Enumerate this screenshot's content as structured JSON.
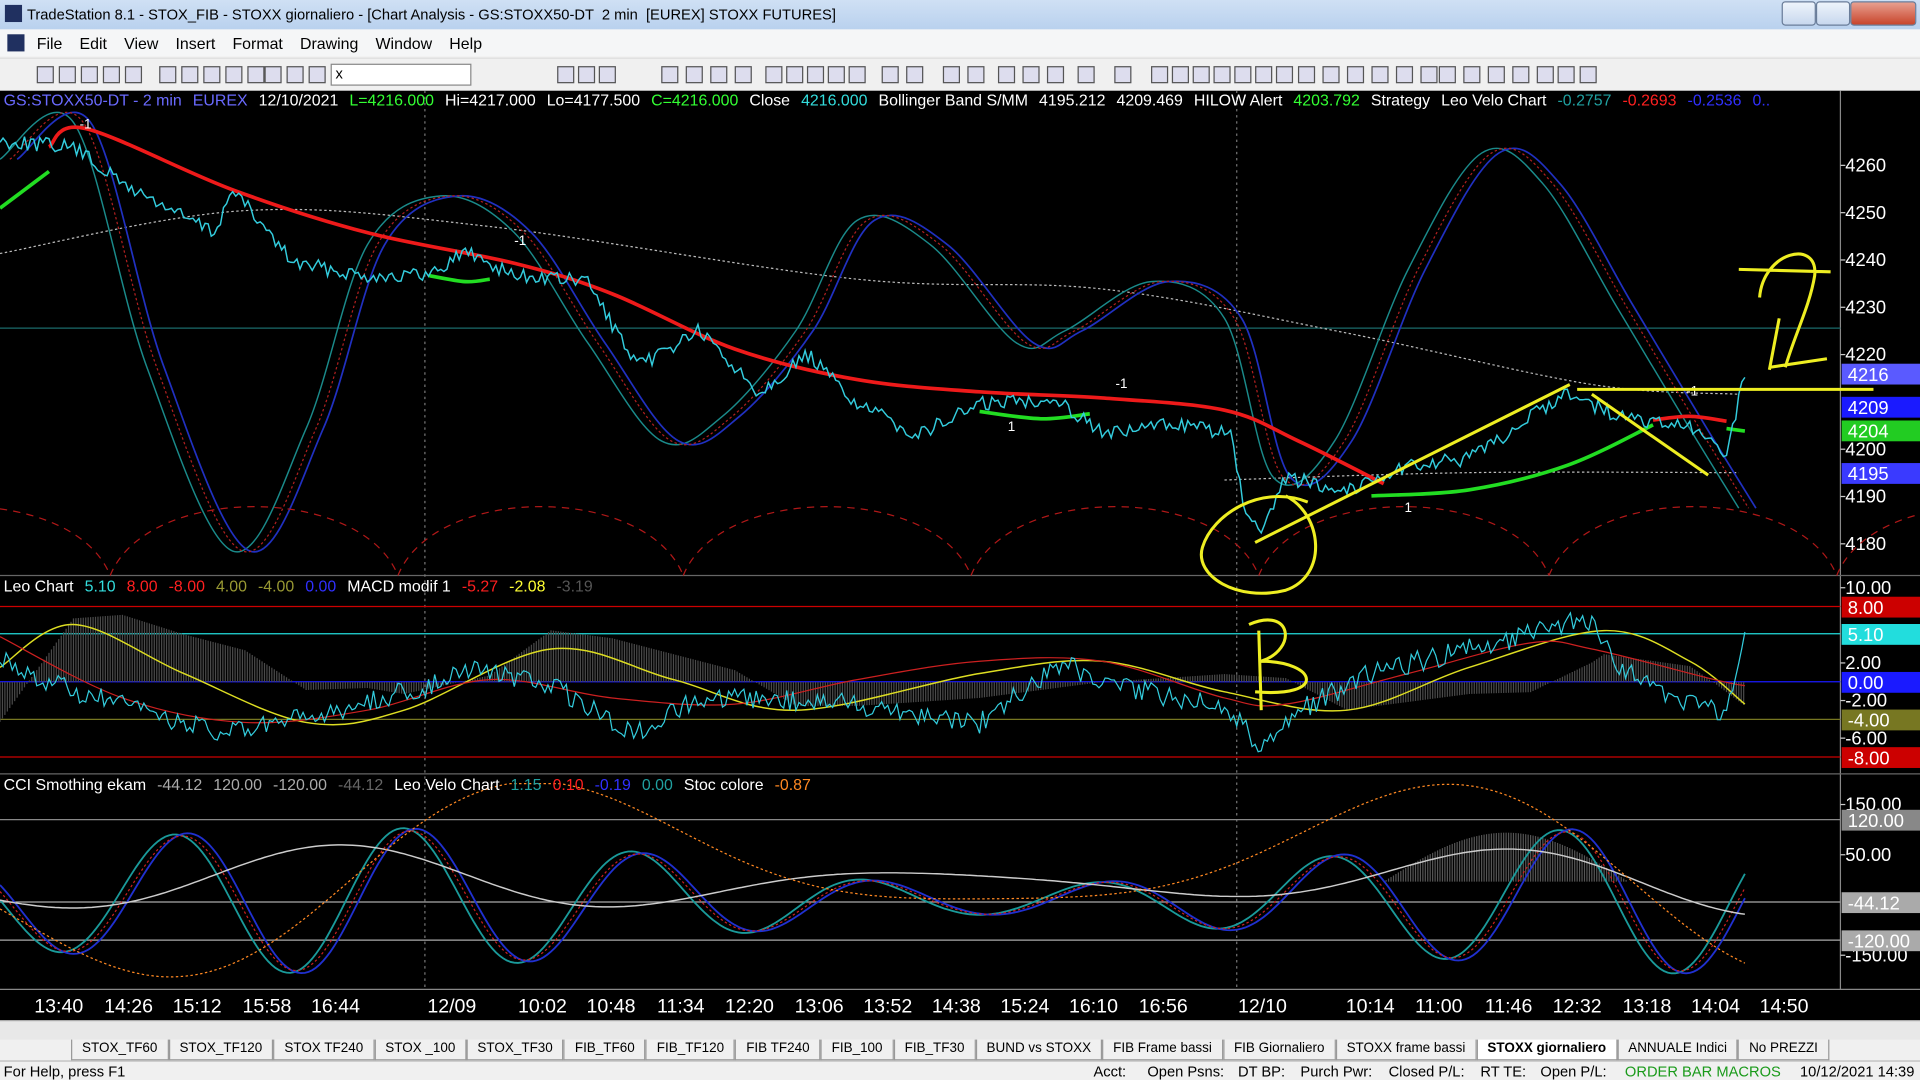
{
  "window": {
    "title": "TradeStation 8.1 - STOX_FIB - STOXX giornaliero - [Chart Analysis - GS:STOXX50-DT  2 min  [EUREX] STOXX FUTURES]"
  },
  "menu": [
    "File",
    "Edit",
    "View",
    "Insert",
    "Format",
    "Drawing",
    "Window",
    "Help"
  ],
  "toolbar": {
    "symbol": "x"
  },
  "chart": {
    "header": [
      {
        "text": "GS:STOXX50-DT - 2 min",
        "color": "#6a6aff"
      },
      {
        "text": "EUREX",
        "color": "#6a6aff"
      },
      {
        "text": "12/10/2021",
        "color": "#ffffff"
      },
      {
        "text": "L=4216.000",
        "color": "#33ff33"
      },
      {
        "text": "Hi=4217.000",
        "color": "#ffffff"
      },
      {
        "text": "Lo=4177.500",
        "color": "#ffffff"
      },
      {
        "text": "C=4216.000",
        "color": "#33ff33"
      },
      {
        "text": "Close",
        "color": "#ffffff"
      },
      {
        "text": "4216.000",
        "color": "#33dddd"
      },
      {
        "text": "Bollinger Band S/MM",
        "color": "#ffffff"
      },
      {
        "text": "4195.212",
        "color": "#ffffff"
      },
      {
        "text": "4209.469",
        "color": "#ffffff"
      },
      {
        "text": "HILOW Alert",
        "color": "#ffffff"
      },
      {
        "text": "4203.792",
        "color": "#33ff33"
      },
      {
        "text": "Strategy",
        "color": "#ffffff"
      },
      {
        "text": "Leo Velo Chart",
        "color": "#ffffff"
      },
      {
        "text": "-0.2757",
        "color": "#20a0a0"
      },
      {
        "text": "-0.2693",
        "color": "#ff2020"
      },
      {
        "text": "-0.2536",
        "color": "#3030ff"
      },
      {
        "text": "0..",
        "color": "#3030ff"
      }
    ],
    "price_axis": {
      "ylim": [
        4173.3,
        4275.8
      ],
      "ticks": [
        4260,
        4250,
        4240,
        4230,
        4220,
        4200,
        4190,
        4180
      ],
      "tags": [
        {
          "value": 4216,
          "color": "#5a5aff"
        },
        {
          "value": 4209,
          "color": "#1a1aff"
        },
        {
          "value": 4204,
          "color": "#22cc22"
        },
        {
          "value": 4195,
          "color": "#3a3aff"
        }
      ]
    },
    "macd": {
      "header": [
        {
          "text": "Leo Chart",
          "color": "#ffffff"
        },
        {
          "text": "5.10",
          "color": "#33dddd"
        },
        {
          "text": "8.00",
          "color": "#ff2020"
        },
        {
          "text": "-8.00",
          "color": "#ff2020"
        },
        {
          "text": "4.00",
          "color": "#999933"
        },
        {
          "text": "-4.00",
          "color": "#999933"
        },
        {
          "text": "0.00",
          "color": "#3030ff"
        },
        {
          "text": "MACD modif 1",
          "color": "#ffffff"
        },
        {
          "text": "-5.27",
          "color": "#ff2020"
        },
        {
          "text": "-2.08",
          "color": "#ffff33"
        },
        {
          "text": "-3.19",
          "color": "#555555"
        }
      ],
      "ylim": [
        -9.8,
        11.3
      ],
      "ticks": [
        {
          "value": 10,
          "label": "10.00"
        },
        {
          "value": 2,
          "label": "2.00"
        },
        {
          "value": -2,
          "label": "-2.00"
        },
        {
          "value": -6,
          "label": "-6.00"
        }
      ],
      "tags": [
        {
          "value": 8,
          "label": "8.00",
          "color": "#cc0000"
        },
        {
          "value": 5.1,
          "label": "5.10",
          "color": "#22dddd"
        },
        {
          "value": 0,
          "label": "0.00",
          "color": "#1a1aff"
        },
        {
          "value": -4,
          "label": "-4.00",
          "color": "#777722"
        },
        {
          "value": -8,
          "label": "-8.00",
          "color": "#cc0000"
        }
      ]
    },
    "cci": {
      "header": [
        {
          "text": "CCI Smothing ekam",
          "color": "#ffffff"
        },
        {
          "text": "-44.12",
          "color": "#aaaaaa"
        },
        {
          "text": "120.00",
          "color": "#aaaaaa"
        },
        {
          "text": "-120.00",
          "color": "#aaaaaa"
        },
        {
          "text": "-44.12",
          "color": "#666666"
        },
        {
          "text": "Leo Velo Chart",
          "color": "#ffffff"
        },
        {
          "text": "1.15",
          "color": "#20a0a0"
        },
        {
          "text": "0.10",
          "color": "#ff2020"
        },
        {
          "text": "-0.19",
          "color": "#3030ff"
        },
        {
          "text": "0.00",
          "color": "#20a0a0"
        },
        {
          "text": "Stoc colore",
          "color": "#ffffff"
        },
        {
          "text": "-0.87",
          "color": "#ff8822"
        }
      ],
      "ylim": [
        -218,
        211
      ],
      "ticks": [
        {
          "value": 150,
          "label": "150.00"
        },
        {
          "value": 50,
          "label": "50.00"
        },
        {
          "value": -150,
          "label": "-150.00"
        }
      ],
      "tags": [
        {
          "value": 120,
          "label": "120.00",
          "color": "#888888"
        },
        {
          "value": -44.12,
          "label": "-44.12",
          "color": "#aaaaaa"
        },
        {
          "value": -120,
          "label": "-120.00",
          "color": "#aaaaaa"
        }
      ]
    },
    "time_labels": [
      "13:40",
      "14:26",
      "15:12",
      "15:58",
      "16:44",
      "12/09",
      "10:02",
      "10:48",
      "11:34",
      "12:20",
      "13:06",
      "13:52",
      "14:38",
      "15:24",
      "16:10",
      "16:56",
      "12/10",
      "10:14",
      "11:00",
      "11:46",
      "12:32",
      "13:18",
      "14:04",
      "14:50"
    ]
  },
  "tabs": [
    "STOX_TF60",
    "STOX_TF120",
    "STOX TF240",
    "STOX _100",
    "STOX_TF30",
    "FIB_TF60",
    "FIB_TF120",
    "FIB TF240",
    "FIB_100",
    "FIB_TF30",
    "BUND vs STOXX",
    "FIB Frame bassi",
    "FIB Giornaliero",
    "STOXX frame bassi",
    "STOXX giornaliero",
    "ANNUALE Indici",
    "No PREZZI"
  ],
  "active_tab": 14,
  "status": {
    "help": "For Help, press F1",
    "fields": [
      "Acct:",
      "Open Psns:",
      "DT BP:",
      "Purch Pwr:",
      "Closed P/L:",
      "RT TE:",
      "Open P/L:"
    ],
    "macros": "ORDER BAR MACROS",
    "datetime": "10/12/2021 14:39"
  }
}
